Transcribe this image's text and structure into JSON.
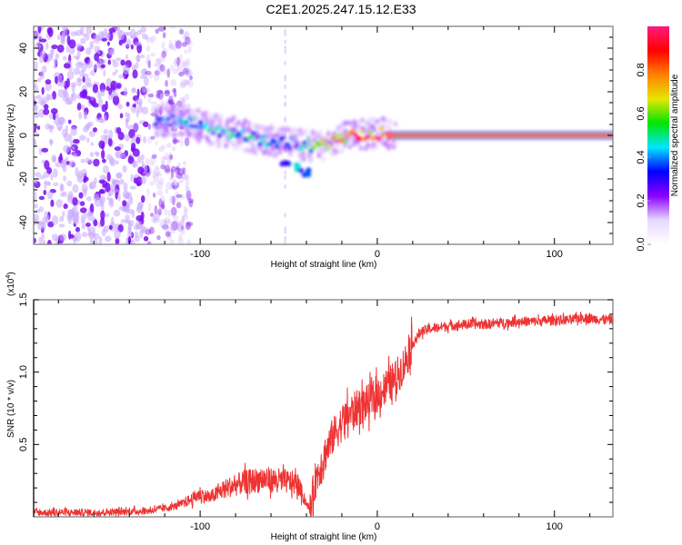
{
  "title": "C2E1.2025.247.15.12.E33",
  "chart_data": [
    {
      "type": "heatmap",
      "name": "spectrogram",
      "title": "C2E1.2025.247.15.12.E33",
      "xlabel": "Height of straight line (km)",
      "ylabel": "Frequency (Hz)",
      "xlim": [
        -194,
        133
      ],
      "ylim": [
        -50,
        50
      ],
      "xticks": [
        -100,
        0,
        100
      ],
      "xtick_labels": [
        "-100",
        "0",
        "100"
      ],
      "yticks": [
        -40,
        -20,
        0,
        20,
        40
      ],
      "ytick_labels": [
        "-40",
        "-20",
        "0",
        "20",
        "40"
      ],
      "colorbar": {
        "label": "Normalized spectral amplitude",
        "range": [
          0,
          1
        ],
        "ticks": [
          0.0,
          0.2,
          0.4,
          0.6,
          0.8
        ],
        "tick_labels": [
          "0.0",
          "0.2",
          "0.4",
          "0.6",
          "0.8"
        ],
        "colors": [
          "#ffffff",
          "#e8d8ff",
          "#8a00ff",
          "#0000ff",
          "#00e6ff",
          "#00e600",
          "#e6e600",
          "#ff8000",
          "#ff0000",
          "#ff1a80"
        ]
      },
      "ridge": {
        "description": "Doppler frequency ridge",
        "points": [
          {
            "x": -125,
            "y": 6,
            "amp": 0.35
          },
          {
            "x": -110,
            "y": 7,
            "amp": 0.4
          },
          {
            "x": -95,
            "y": 3,
            "amp": 0.42
          },
          {
            "x": -80,
            "y": 1,
            "amp": 0.45
          },
          {
            "x": -65,
            "y": -2,
            "amp": 0.45
          },
          {
            "x": -55,
            "y": -3,
            "amp": 0.4
          },
          {
            "x": -45,
            "y": -4,
            "amp": 0.35
          },
          {
            "x": -35,
            "y": -5,
            "amp": 0.55
          },
          {
            "x": -25,
            "y": -3,
            "amp": 0.7
          },
          {
            "x": -15,
            "y": 0,
            "amp": 0.85
          },
          {
            "x": 0,
            "y": 1,
            "amp": 0.9
          },
          {
            "x": 10,
            "y": 0,
            "amp": 0.95
          },
          {
            "x": 133,
            "y": 0,
            "amp": 0.95
          }
        ],
        "secondary_branch": [
          {
            "x": -52,
            "y": -12,
            "amp": 0.35
          },
          {
            "x": -45,
            "y": -15,
            "amp": 0.45
          },
          {
            "x": -40,
            "y": -17,
            "amp": 0.35
          }
        ],
        "noise_region_xlim": [
          -194,
          -115
        ]
      }
    },
    {
      "type": "line",
      "name": "snr",
      "xlabel": "Height of straight line (km)",
      "ylabel": "SNR (10 * v/v)",
      "y_multiplier_label": "(x10",
      "y_multiplier_exp": "4",
      "xlim": [
        -194,
        133
      ],
      "ylim": [
        0,
        15000
      ],
      "xticks": [
        -100,
        0,
        100
      ],
      "xtick_labels": [
        "-100",
        "0",
        "100"
      ],
      "yticks": [
        5000,
        10000,
        15000
      ],
      "ytick_labels": [
        "0.5",
        "1.0",
        "1.5"
      ],
      "color": "#ee3333",
      "series": [
        {
          "name": "SNR",
          "x": [
            -194,
            -160,
            -130,
            -115,
            -105,
            -100,
            -95,
            -85,
            -75,
            -65,
            -55,
            -45,
            -38,
            -35,
            -30,
            -25,
            -20,
            -15,
            -10,
            -5,
            0,
            5,
            10,
            15,
            20,
            25,
            30,
            40,
            50,
            60,
            70,
            80,
            90,
            100,
            110,
            115,
            120,
            133
          ],
          "values": [
            300,
            300,
            400,
            700,
            1200,
            1600,
            1300,
            2000,
            2400,
            2600,
            2500,
            2300,
            400,
            2500,
            4200,
            5600,
            6500,
            7200,
            7600,
            7900,
            8400,
            9000,
            9500,
            10500,
            12000,
            12800,
            13000,
            13200,
            13300,
            13300,
            13400,
            13500,
            13500,
            13600,
            13600,
            13800,
            13700,
            13600
          ]
        }
      ]
    }
  ]
}
